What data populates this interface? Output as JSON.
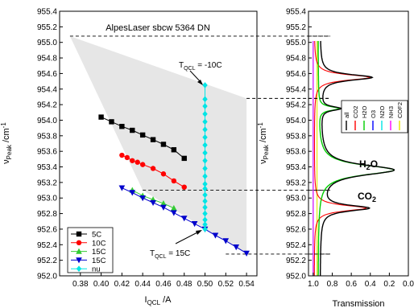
{
  "chart_data": [
    {
      "type": "scatter",
      "title": "AlpesLaser sbcw 5364 DN",
      "xlabel": "I_QCL /A",
      "ylabel": "ν_Peak /cm⁻¹",
      "xlim": [
        0.36,
        0.55
      ],
      "ylim": [
        952.0,
        955.4
      ],
      "x_ticks": [
        "0.38",
        "0.40",
        "0.42",
        "0.44",
        "0.46",
        "0.48",
        "0.50",
        "0.52",
        "0.54"
      ],
      "y_ticks": [
        "952.0",
        "952.2",
        "952.4",
        "952.6",
        "952.8",
        "953.0",
        "953.2",
        "953.4",
        "953.6",
        "953.8",
        "954.0",
        "954.2",
        "954.4",
        "954.6",
        "954.8",
        "955.0",
        "955.2",
        "955.4"
      ],
      "grid": false,
      "legend_position": "bottom-left",
      "tuning_region": {
        "polygon": [
          [
            0.37,
            955.08
          ],
          [
            0.54,
            954.28
          ],
          [
            0.54,
            952.28
          ],
          [
            0.44,
            953.1
          ]
        ]
      },
      "series": [
        {
          "name": "5C",
          "color": "#000000",
          "marker": "square",
          "x": [
            0.4,
            0.41,
            0.42,
            0.43,
            0.44,
            0.45,
            0.46,
            0.47,
            0.48
          ],
          "y": [
            954.04,
            953.98,
            953.92,
            953.87,
            953.81,
            953.75,
            953.69,
            953.62,
            953.51
          ]
        },
        {
          "name": "10C",
          "color": "#ff0000",
          "marker": "circle",
          "x": [
            0.42,
            0.425,
            0.43,
            0.435,
            0.44,
            0.45,
            0.46,
            0.47,
            0.48
          ],
          "y": [
            953.55,
            953.52,
            953.48,
            953.46,
            953.43,
            953.38,
            953.31,
            953.22,
            953.14
          ]
        },
        {
          "name": "15C",
          "color": "#33cc33",
          "marker": "triangle-up",
          "x": [
            0.43,
            0.44,
            0.45,
            0.46,
            0.47
          ],
          "y": [
            953.1,
            953.03,
            952.98,
            952.93,
            952.87
          ]
        },
        {
          "name": "15C",
          "color": "#0000cc",
          "marker": "triangle-down",
          "x": [
            0.42,
            0.43,
            0.44,
            0.45,
            0.46,
            0.47,
            0.48,
            0.49,
            0.5,
            0.51,
            0.52,
            0.53,
            0.54
          ],
          "y": [
            953.13,
            953.07,
            953.0,
            952.94,
            952.88,
            952.81,
            952.74,
            952.67,
            952.6,
            952.52,
            952.45,
            952.37,
            952.29
          ]
        },
        {
          "name": "nu",
          "color": "#00e5e5",
          "marker": "diamond",
          "x": [
            0.5,
            0.5,
            0.5,
            0.5,
            0.5,
            0.5,
            0.5,
            0.5,
            0.5,
            0.5,
            0.5,
            0.5,
            0.5,
            0.5,
            0.5,
            0.5,
            0.5,
            0.5,
            0.5,
            0.5,
            0.5
          ],
          "y": [
            954.45,
            954.27,
            954.18,
            954.08,
            953.98,
            953.88,
            953.78,
            953.68,
            953.58,
            953.48,
            953.38,
            953.28,
            953.18,
            953.12,
            953.04,
            952.96,
            952.88,
            952.8,
            952.72,
            952.66,
            952.6
          ]
        }
      ],
      "annotations": [
        {
          "text": "T_QCL = -10C",
          "at": [
            0.5,
            954.45
          ]
        },
        {
          "text": "T_QCL = 15C",
          "at": [
            0.5,
            952.6
          ]
        }
      ]
    },
    {
      "type": "line",
      "xlabel": "Transmission",
      "ylabel": "ν_Peak /cm⁻¹",
      "xlim": [
        1.05,
        0.0
      ],
      "ylim": [
        952.0,
        955.4
      ],
      "x_ticks": [
        "1.0",
        "0.8",
        "0.6",
        "0.4",
        "0.2",
        "0.0"
      ],
      "y_ticks": [
        "952.0",
        "952.2",
        "952.4",
        "952.6",
        "952.8",
        "953.0",
        "953.2",
        "953.4",
        "953.6",
        "953.8",
        "954.0",
        "954.2",
        "954.4",
        "954.6",
        "954.8",
        "955.0",
        "955.2",
        "955.4"
      ],
      "legend_position": "right",
      "series": [
        {
          "name": "all",
          "color": "#000000"
        },
        {
          "name": "CO2",
          "color": "#ff0000"
        },
        {
          "name": "H2O",
          "color": "#00cc00"
        },
        {
          "name": "O3",
          "color": "#0000ff"
        },
        {
          "name": "N2O",
          "color": "#00e5e5"
        },
        {
          "name": "NH3",
          "color": "#ff00ff"
        },
        {
          "name": "COF2",
          "color": "#e5e500"
        }
      ],
      "gas_labels": [
        {
          "text": "H₂O",
          "at": [
            0.3,
            953.5
          ]
        },
        {
          "text": "CO₂",
          "at": [
            0.4,
            953.05
          ]
        }
      ],
      "absorption_lines": [
        {
          "gas": "CO2",
          "center": 954.55,
          "min_transmission": 0.41,
          "width": 0.045
        },
        {
          "gas": "CO2",
          "center": 952.87,
          "min_transmission": 0.45,
          "width": 0.045
        },
        {
          "gas": "H2O",
          "center": 953.36,
          "min_transmission": 0.16,
          "width": 0.08
        },
        {
          "gas": "H2O",
          "center": 954.15,
          "min_transmission": 0.77,
          "width": 0.03
        }
      ]
    }
  ]
}
